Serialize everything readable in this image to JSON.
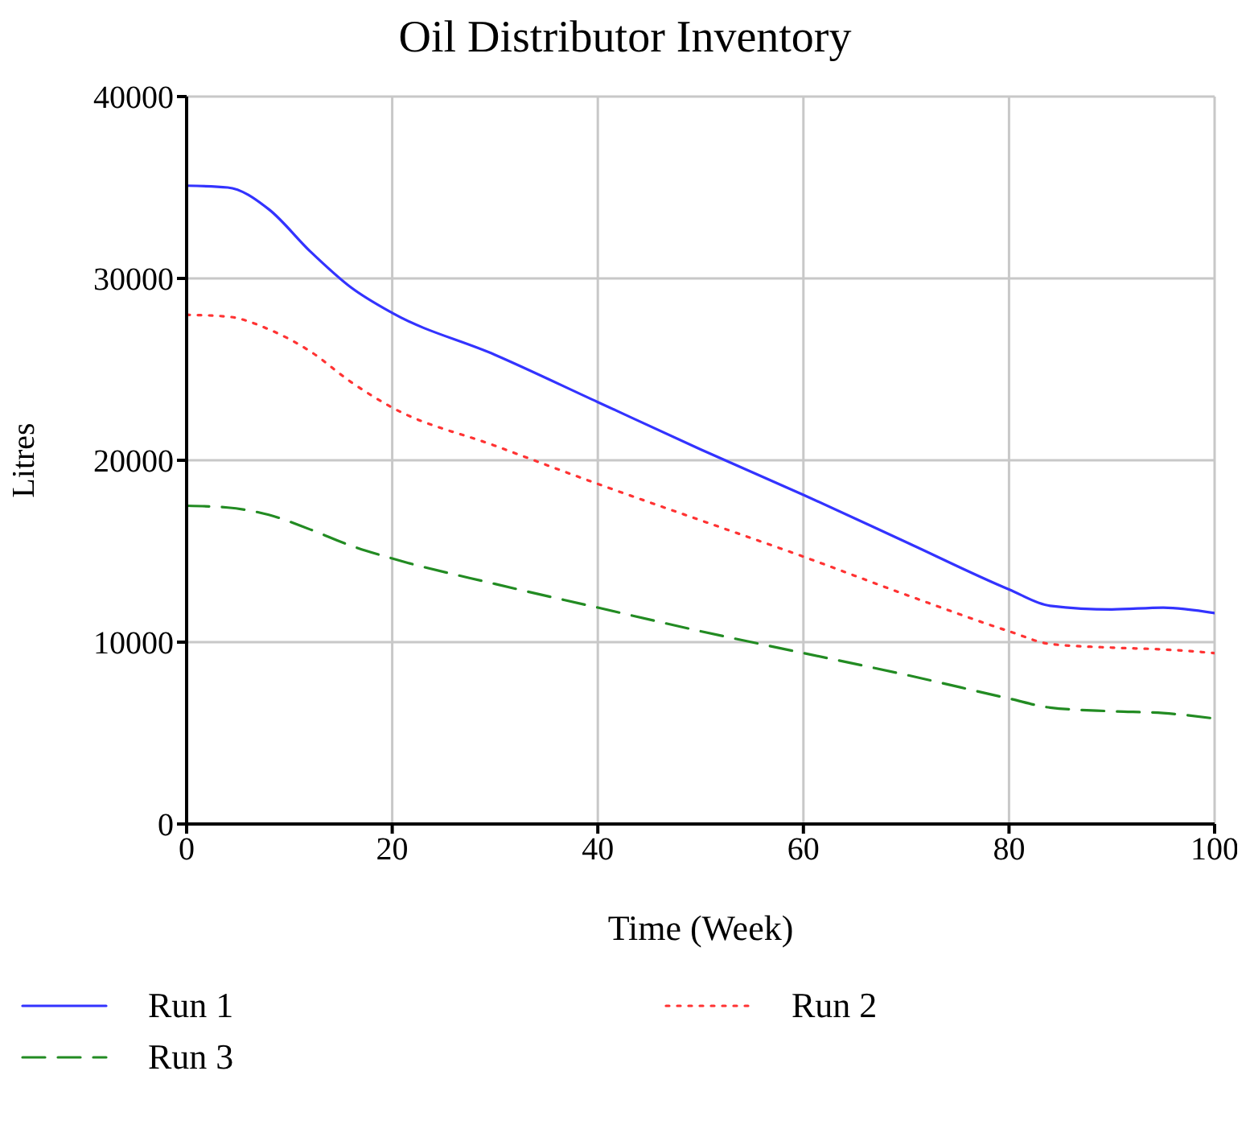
{
  "chart_data": {
    "type": "line",
    "title": "Oil Distributor Inventory",
    "xlabel": "Time (Week)",
    "ylabel": "Litres",
    "x": [
      0,
      4,
      8,
      12,
      16,
      20,
      30,
      40,
      50,
      60,
      70,
      80,
      84,
      90,
      95,
      100
    ],
    "series": [
      {
        "name": "Run 1",
        "color": "#3333ff",
        "line_style": "solid",
        "values": [
          35100,
          35000,
          33800,
          31500,
          29500,
          28100,
          25800,
          23200,
          20600,
          18100,
          15500,
          12900,
          12000,
          11800,
          11900,
          11600
        ]
      },
      {
        "name": "Run 2",
        "color": "#ff3333",
        "line_style": "dotted",
        "values": [
          28000,
          27900,
          27200,
          26000,
          24300,
          22900,
          20800,
          18700,
          16700,
          14700,
          12600,
          10600,
          9900,
          9700,
          9600,
          9400
        ]
      },
      {
        "name": "Run 3",
        "color": "#228b22",
        "line_style": "dashed",
        "values": [
          17500,
          17400,
          17000,
          16200,
          15300,
          14600,
          13200,
          11900,
          10600,
          9400,
          8200,
          6900,
          6400,
          6200,
          6100,
          5800
        ]
      }
    ],
    "xlim": [
      0,
      100
    ],
    "xticks": [
      0,
      20,
      40,
      60,
      80,
      100
    ],
    "ylim": [
      0,
      40000
    ],
    "yticks": [
      0,
      10000,
      20000,
      30000,
      40000
    ],
    "grid": true,
    "legend": "bottom",
    "marker": "none"
  }
}
